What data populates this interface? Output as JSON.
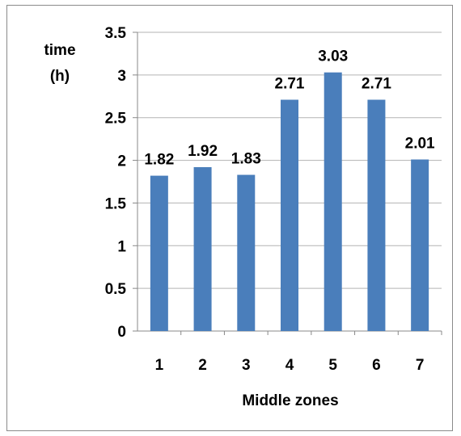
{
  "chart_data": {
    "type": "bar",
    "categories": [
      "1",
      "2",
      "3",
      "4",
      "5",
      "6",
      "7"
    ],
    "values": [
      1.82,
      1.92,
      1.83,
      2.71,
      3.03,
      2.71,
      2.01
    ],
    "data_labels": [
      "1.82",
      "1.92",
      "1.83",
      "2.71",
      "3.03",
      "2.71",
      "2.01"
    ],
    "yticks": [
      "0",
      "0.5",
      "1",
      "1.5",
      "2",
      "2.5",
      "3",
      "3.5"
    ],
    "ylim": [
      0,
      3.5
    ],
    "ylabel_line1": "time",
    "ylabel_line2": "(h)",
    "xlabel": "Middle zones",
    "grid": true,
    "legend": "none",
    "bar_color": "#4a7ebb",
    "grid_color": "#b3b3b3"
  }
}
